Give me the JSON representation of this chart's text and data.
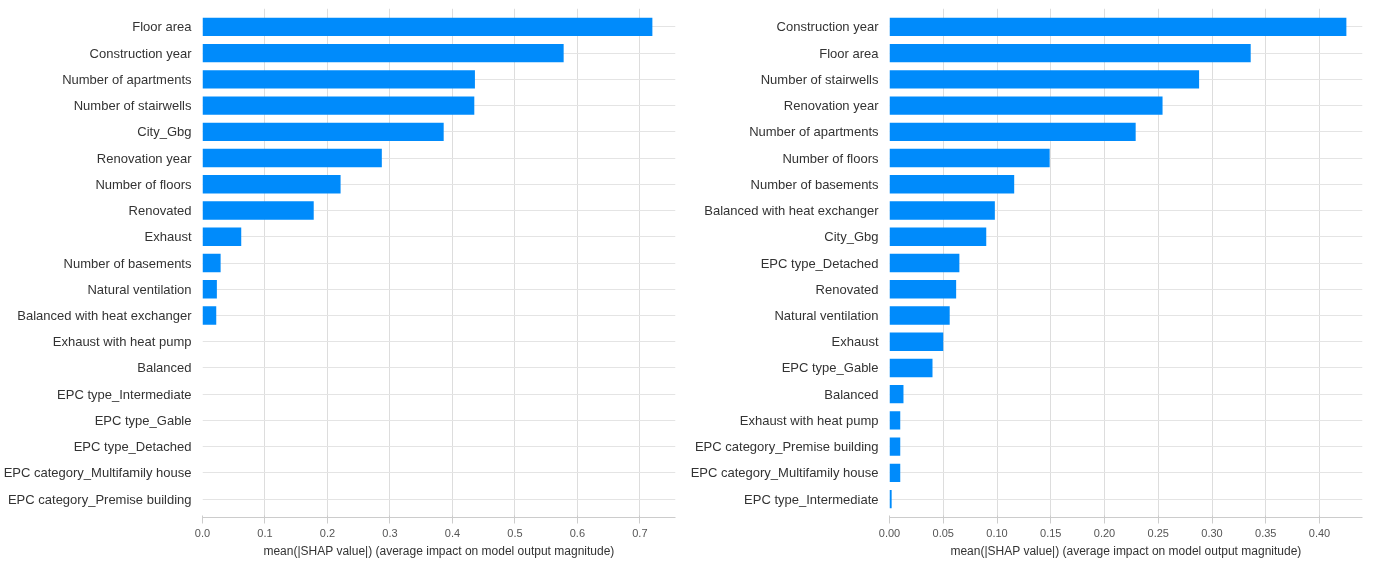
{
  "chart_data": [
    {
      "type": "bar",
      "orientation": "horizontal",
      "xlabel": "mean(|SHAP value|) (average impact on model output magnitude)",
      "categories": [
        "Floor area",
        "Construction year",
        "Number of apartments",
        "Number of stairwells",
        "City_Gbg",
        "Renovation year",
        "Number of floors",
        "Renovated",
        "Exhaust",
        "Number of basements",
        "Natural ventilation",
        "Balanced with heat exchanger",
        "Exhaust with heat pump",
        "Balanced",
        "EPC type_Intermediate",
        "EPC type_Gable",
        "EPC type_Detached",
        "EPC category_Multifamily house",
        "EPC category_Premise building"
      ],
      "values": [
        0.72,
        0.578,
        0.436,
        0.435,
        0.386,
        0.287,
        0.221,
        0.178,
        0.062,
        0.029,
        0.023,
        0.022,
        0,
        0,
        0,
        0,
        0,
        0,
        0
      ],
      "color": "#008bfb",
      "xlim": [
        0,
        0.757
      ],
      "xticks": [
        {
          "value": 0,
          "label": "0.0"
        },
        0.1,
        0.2,
        0.3,
        0.4,
        0.5,
        0.6,
        0.7
      ],
      "grid": true
    },
    {
      "type": "bar",
      "orientation": "horizontal",
      "xlabel": "mean(|SHAP value|) (average impact on model output magnitude)",
      "categories": [
        "Construction year",
        "Floor area",
        "Number of stairwells",
        "Renovation year",
        "Number of apartments",
        "Number of floors",
        "Number of basements",
        "Balanced with heat exchanger",
        "City_Gbg",
        "EPC type_Detached",
        "Renovated",
        "Natural ventilation",
        "Exhaust",
        "EPC type_Gable",
        "Balanced",
        "Exhaust with heat pump",
        "EPC category_Premise building",
        "EPC category_Multifamily house",
        "EPC type_Intermediate"
      ],
      "values": [
        0.425,
        0.336,
        0.288,
        0.254,
        0.229,
        0.149,
        0.116,
        0.098,
        0.09,
        0.065,
        0.062,
        0.056,
        0.05,
        0.04,
        0.013,
        0.01,
        0.01,
        0.01,
        0.002
      ],
      "color": "#008bfb",
      "xlim": [
        0,
        0.44
      ],
      "xticks": [
        {
          "value": 0,
          "label": "0.00"
        },
        0.05,
        {
          "value": 0.1,
          "label": "0.10"
        },
        0.15,
        {
          "value": 0.2,
          "label": "0.20"
        },
        0.25,
        {
          "value": 0.3,
          "label": "0.30"
        },
        0.35,
        {
          "value": 0.4,
          "label": "0.40"
        }
      ],
      "grid": true
    }
  ]
}
